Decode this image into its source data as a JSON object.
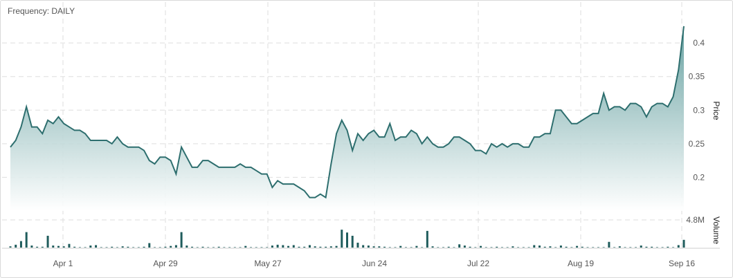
{
  "frequency_label": "Frequency: DAILY",
  "chart_data": {
    "type": "area",
    "colors": {
      "line": "#2d6e6e",
      "fill_top": "#5b9a9a",
      "fill_bottom": "#ffffff",
      "volume_bar": "#1f5c5c",
      "grid": "#dddddd"
    },
    "grid": true,
    "price_axis": {
      "label": "Price",
      "ticks": [
        "0.2",
        "0.25",
        "0.3",
        "0.35",
        "0.4"
      ],
      "range": [
        0.15,
        0.43
      ]
    },
    "volume_axis": {
      "label": "Volume",
      "ticks": [
        "4.8M"
      ],
      "max": 6.8
    },
    "x_axis": {
      "ticks": [
        "Apr 1",
        "Apr 29",
        "May 27",
        "Jun 24",
        "Jul 22",
        "Aug 19",
        "Sep 16"
      ]
    },
    "price": [
      0.245,
      0.255,
      0.275,
      0.305,
      0.275,
      0.275,
      0.265,
      0.285,
      0.28,
      0.29,
      0.28,
      0.275,
      0.27,
      0.27,
      0.265,
      0.255,
      0.255,
      0.255,
      0.255,
      0.25,
      0.26,
      0.25,
      0.245,
      0.245,
      0.245,
      0.24,
      0.225,
      0.22,
      0.23,
      0.23,
      0.225,
      0.205,
      0.245,
      0.23,
      0.215,
      0.215,
      0.225,
      0.225,
      0.22,
      0.215,
      0.215,
      0.215,
      0.215,
      0.22,
      0.215,
      0.215,
      0.21,
      0.205,
      0.205,
      0.185,
      0.195,
      0.19,
      0.19,
      0.19,
      0.185,
      0.18,
      0.17,
      0.17,
      0.175,
      0.17,
      0.22,
      0.265,
      0.285,
      0.27,
      0.24,
      0.265,
      0.255,
      0.265,
      0.27,
      0.26,
      0.26,
      0.28,
      0.255,
      0.26,
      0.26,
      0.27,
      0.265,
      0.25,
      0.26,
      0.25,
      0.245,
      0.245,
      0.25,
      0.26,
      0.26,
      0.255,
      0.25,
      0.24,
      0.24,
      0.235,
      0.25,
      0.245,
      0.25,
      0.245,
      0.25,
      0.25,
      0.245,
      0.245,
      0.26,
      0.26,
      0.265,
      0.265,
      0.3,
      0.3,
      0.29,
      0.28,
      0.28,
      0.285,
      0.29,
      0.295,
      0.295,
      0.325,
      0.3,
      0.305,
      0.305,
      0.3,
      0.31,
      0.31,
      0.305,
      0.29,
      0.305,
      0.31,
      0.31,
      0.305,
      0.32,
      0.36,
      0.425
    ],
    "volume": [
      0.3,
      0.7,
      1.6,
      3.8,
      0.5,
      0.2,
      0.2,
      2.9,
      0.5,
      0.4,
      0.3,
      0.9,
      0.2,
      0.1,
      0.1,
      0.5,
      0.6,
      0.1,
      0.1,
      0.2,
      0.1,
      0.3,
      0.2,
      0.1,
      0.1,
      0.2,
      1.1,
      0.1,
      0.1,
      0.2,
      0.4,
      0.6,
      3.8,
      0.5,
      0.2,
      0.1,
      0.2,
      0.1,
      0.1,
      0.2,
      0.1,
      0.1,
      0.1,
      0.1,
      0.4,
      0.1,
      0.1,
      0.1,
      0.1,
      0.5,
      0.7,
      0.6,
      0.4,
      0.6,
      0.2,
      0.2,
      0.6,
      0.3,
      0.2,
      0.2,
      0.3,
      0.4,
      4.4,
      3.7,
      2.9,
      1.2,
      0.6,
      0.5,
      0.3,
      0.3,
      0.2,
      0.1,
      0.1,
      0.4,
      0.1,
      0.1,
      0.4,
      0.1,
      4.1,
      0.3,
      0.1,
      0.1,
      0.2,
      0.1,
      0.8,
      0.5,
      0.2,
      0.1,
      0.4,
      0.1,
      0.1,
      0.2,
      0.1,
      0.1,
      0.3,
      0.1,
      0.1,
      0.1,
      0.6,
      0.5,
      0.2,
      0.3,
      0.1,
      0.5,
      0.2,
      0.1,
      0.4,
      0.2,
      0.1,
      0.1,
      0.1,
      0.1,
      1.4,
      0.1,
      0.3,
      0.1,
      0.1,
      0.1,
      0.5,
      0.2,
      0.2,
      0.1,
      0.1,
      0.2,
      0.1,
      0.6,
      1.9
    ]
  }
}
